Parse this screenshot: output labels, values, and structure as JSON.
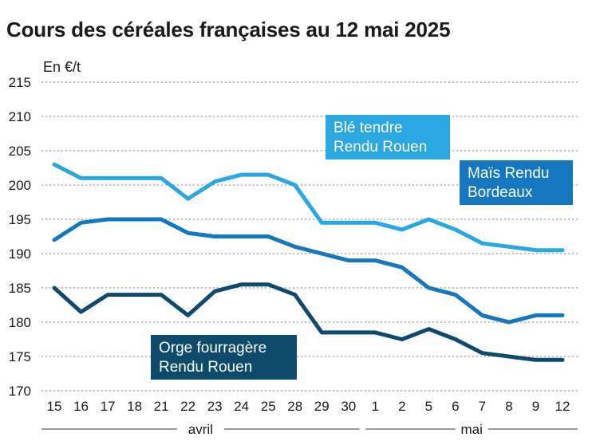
{
  "chart_data": {
    "type": "line",
    "title": "Cours des céréales françaises au 12 mai 2025",
    "ylabel": "En €/t",
    "xlabel": "",
    "ylim": [
      170,
      215
    ],
    "yticks": [
      170,
      175,
      180,
      185,
      190,
      195,
      200,
      205,
      210,
      215
    ],
    "categories": [
      "15",
      "16",
      "17",
      "18",
      "21",
      "22",
      "23",
      "24",
      "25",
      "28",
      "29",
      "30",
      "1",
      "2",
      "5",
      "6",
      "7",
      "8",
      "9",
      "12"
    ],
    "months": [
      {
        "label": "avril",
        "from": 0,
        "to": 11
      },
      {
        "label": "mai",
        "from": 12,
        "to": 19
      }
    ],
    "series": [
      {
        "name": "Blé tendre Rendu Rouen",
        "label_lines": [
          "Blé tendre",
          "Rendu Rouen"
        ],
        "color": "#2aa7e0",
        "values": [
          203,
          201,
          201,
          201,
          201,
          198,
          200.5,
          201.5,
          201.5,
          200,
          194.5,
          194.5,
          194.5,
          193.5,
          195,
          193.5,
          191.5,
          191,
          190.5,
          190.5
        ]
      },
      {
        "name": "Maïs Rendu Bordeaux",
        "label_lines": [
          "Maïs Rendu",
          "Bordeaux"
        ],
        "color": "#1577bd",
        "values": [
          192,
          194.5,
          195,
          195,
          195,
          193,
          192.5,
          192.5,
          192.5,
          191,
          190,
          189,
          189,
          188,
          185,
          184,
          181,
          180,
          181,
          181
        ]
      },
      {
        "name": "Orge fourragère Rendu Rouen",
        "label_lines": [
          "Orge fourragère",
          "Rendu Rouen"
        ],
        "color": "#0e4a6b",
        "values": [
          185,
          181.5,
          184,
          184,
          184,
          181,
          184.5,
          185.5,
          185.5,
          184,
          178.5,
          178.5,
          178.5,
          177.5,
          179,
          177.5,
          175.5,
          175,
          174.5,
          174.5
        ]
      }
    ]
  }
}
